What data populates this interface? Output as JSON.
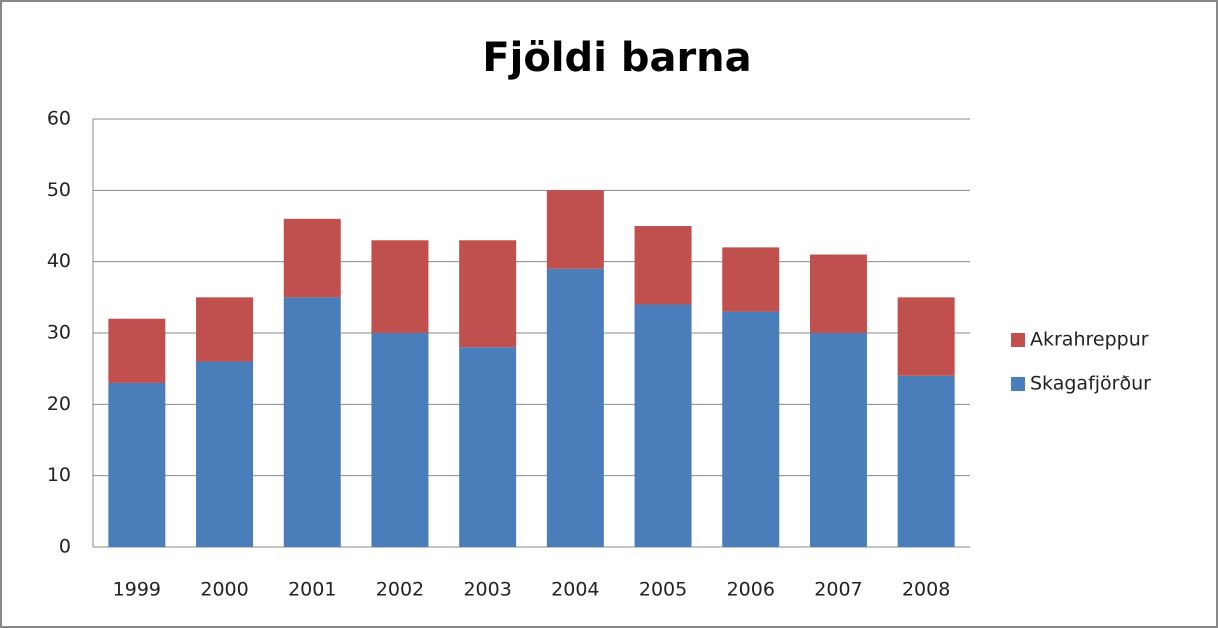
{
  "chart_data": {
    "type": "stacked_bar",
    "title": "Fjöldi barna",
    "categories": [
      "1999",
      "2000",
      "2001",
      "2002",
      "2003",
      "2004",
      "2005",
      "2006",
      "2007",
      "2008"
    ],
    "series": [
      {
        "name": "Skagafjörður",
        "color": "#4a7ebb",
        "values": [
          23,
          26,
          35,
          30,
          28,
          39,
          34,
          33,
          30,
          24
        ]
      },
      {
        "name": "Akrahreppur",
        "color": "#c0504d",
        "values": [
          9,
          9,
          11,
          13,
          15,
          11,
          11,
          9,
          11,
          11
        ]
      }
    ],
    "ylim": [
      0,
      60
    ],
    "yticks": [
      0,
      10,
      20,
      30,
      40,
      50,
      60
    ],
    "grid": true,
    "legend": "right"
  }
}
